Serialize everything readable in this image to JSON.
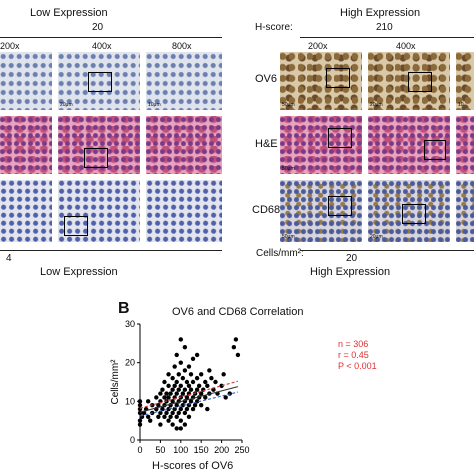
{
  "panel_a": {
    "left_title": "Low Expression",
    "right_title": "High Expression",
    "hscore_label": "H-score:",
    "left_hscore": "20",
    "right_hscore": "210",
    "mag_left": [
      "200x",
      "400x",
      "800x"
    ],
    "mag_right": [
      "200x",
      "400x"
    ],
    "row_labels": [
      "OV6",
      "H&E",
      "CD68"
    ],
    "cells_label": "Cells/mm²:",
    "left_cells": "4",
    "right_cells": "20",
    "left_bottom_title": "Low Expression",
    "right_bottom_title": "High Expression",
    "scale_bars_left": [
      "20μm",
      "10μm"
    ],
    "scale_bars_right": [
      "50μm",
      "20μm",
      "10"
    ],
    "scale_bars_he_right": [
      "50μm"
    ],
    "scale_bars_cd68_right": [
      "50μm",
      "20μm"
    ]
  },
  "panel_b": {
    "letter": "B",
    "chart_data": {
      "type": "scatter",
      "title": "OV6 and CD68 Correlation",
      "xlabel": "H-scores of OV6",
      "ylabel": "Cells/mm²",
      "xlim": [
        0,
        250
      ],
      "ylim": [
        0,
        30
      ],
      "xticks": [
        0,
        50,
        100,
        150,
        200,
        250
      ],
      "yticks": [
        0,
        10,
        20,
        30
      ],
      "annotations": [
        "n = 306",
        "r = 0.45",
        "P < 0.001"
      ],
      "annotation_color": "#e03030",
      "fit_line": {
        "x": [
          0,
          240
        ],
        "y": [
          7.2,
          13.8
        ],
        "color": "#333333"
      },
      "ci_upper": {
        "x": [
          0,
          240
        ],
        "y": [
          8.2,
          15.2
        ],
        "color": "#e03030"
      },
      "ci_lower": {
        "x": [
          0,
          240
        ],
        "y": [
          6.2,
          12.4
        ],
        "color": "#3060d0"
      },
      "points": [
        [
          0,
          4
        ],
        [
          0,
          5
        ],
        [
          0,
          7
        ],
        [
          0,
          8
        ],
        [
          0,
          9
        ],
        [
          0,
          10
        ],
        [
          5,
          6
        ],
        [
          10,
          7
        ],
        [
          15,
          8
        ],
        [
          20,
          10
        ],
        [
          20,
          6
        ],
        [
          25,
          5
        ],
        [
          30,
          7
        ],
        [
          30,
          9
        ],
        [
          40,
          8
        ],
        [
          40,
          11
        ],
        [
          45,
          6
        ],
        [
          45,
          9
        ],
        [
          50,
          10
        ],
        [
          50,
          12
        ],
        [
          50,
          7
        ],
        [
          50,
          4
        ],
        [
          55,
          8
        ],
        [
          55,
          13
        ],
        [
          60,
          9
        ],
        [
          60,
          11
        ],
        [
          60,
          6
        ],
        [
          60,
          15
        ],
        [
          65,
          10
        ],
        [
          65,
          7
        ],
        [
          65,
          12
        ],
        [
          70,
          8
        ],
        [
          70,
          11
        ],
        [
          70,
          14
        ],
        [
          70,
          5
        ],
        [
          70,
          17
        ],
        [
          75,
          9
        ],
        [
          75,
          12
        ],
        [
          75,
          6
        ],
        [
          80,
          10
        ],
        [
          80,
          13
        ],
        [
          80,
          7
        ],
        [
          80,
          16
        ],
        [
          80,
          4
        ],
        [
          85,
          11
        ],
        [
          85,
          8
        ],
        [
          85,
          14
        ],
        [
          85,
          19
        ],
        [
          90,
          9
        ],
        [
          90,
          12
        ],
        [
          90,
          6
        ],
        [
          90,
          15
        ],
        [
          90,
          22
        ],
        [
          90,
          3
        ],
        [
          95,
          10
        ],
        [
          95,
          13
        ],
        [
          95,
          7
        ],
        [
          95,
          17
        ],
        [
          100,
          11
        ],
        [
          100,
          8
        ],
        [
          100,
          14
        ],
        [
          100,
          5
        ],
        [
          100,
          20
        ],
        [
          100,
          26
        ],
        [
          100,
          3
        ],
        [
          105,
          9
        ],
        [
          105,
          12
        ],
        [
          105,
          16
        ],
        [
          110,
          10
        ],
        [
          110,
          13
        ],
        [
          110,
          7
        ],
        [
          110,
          18
        ],
        [
          110,
          24
        ],
        [
          110,
          4
        ],
        [
          115,
          11
        ],
        [
          115,
          8
        ],
        [
          115,
          15
        ],
        [
          120,
          9
        ],
        [
          120,
          12
        ],
        [
          120,
          14
        ],
        [
          120,
          6
        ],
        [
          120,
          19
        ],
        [
          125,
          10
        ],
        [
          125,
          13
        ],
        [
          125,
          17
        ],
        [
          130,
          11
        ],
        [
          130,
          8
        ],
        [
          130,
          15
        ],
        [
          130,
          21
        ],
        [
          135,
          12
        ],
        [
          135,
          9
        ],
        [
          140,
          10
        ],
        [
          140,
          13
        ],
        [
          140,
          16
        ],
        [
          140,
          22
        ],
        [
          145,
          11
        ],
        [
          145,
          14
        ],
        [
          150,
          12
        ],
        [
          150,
          9
        ],
        [
          150,
          17
        ],
        [
          155,
          13
        ],
        [
          160,
          11
        ],
        [
          160,
          15
        ],
        [
          165,
          14
        ],
        [
          165,
          8
        ],
        [
          170,
          12
        ],
        [
          170,
          18
        ],
        [
          175,
          16
        ],
        [
          180,
          13
        ],
        [
          185,
          15
        ],
        [
          190,
          12
        ],
        [
          200,
          14
        ],
        [
          205,
          17
        ],
        [
          210,
          11
        ],
        [
          220,
          12
        ],
        [
          230,
          24
        ],
        [
          235,
          26
        ],
        [
          240,
          22
        ]
      ]
    }
  }
}
